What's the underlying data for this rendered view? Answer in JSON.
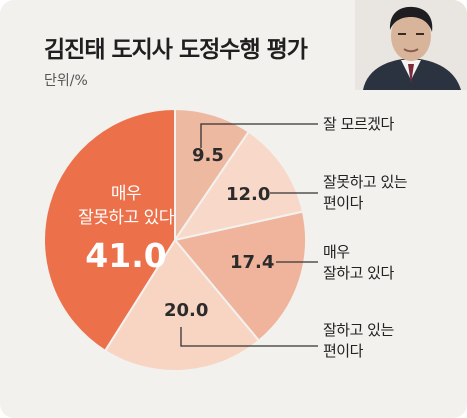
{
  "header": {
    "title": "김진태 도지사 도정수행 평가",
    "unit": "단위/%"
  },
  "chart_data": {
    "type": "pie",
    "start_angle_deg": 0,
    "direction": "clockwise",
    "categories": [
      "잘 모르겠다",
      "잘못하고 있는 편이다",
      "매우 잘하고 있다",
      "잘하고 있는 편이다",
      "매우 잘못하고 있다"
    ],
    "values": [
      9.5,
      12.0,
      17.4,
      20.0,
      41.0
    ],
    "value_labels": [
      "9.5",
      "12.0",
      "17.4",
      "20.0",
      "41.0"
    ],
    "legend_lines": [
      [
        "잘 모르겠다"
      ],
      [
        "잘못하고 있는",
        "편이다"
      ],
      [
        "매우",
        "잘하고 있다"
      ],
      [
        "잘하고 있는",
        "편이다"
      ]
    ],
    "highlight_label_lines": [
      "매우",
      "잘못하고 있다"
    ],
    "colors": [
      "#edb9a1",
      "#f8d8c9",
      "#efb49b",
      "#f8d5c3",
      "#ec7049"
    ],
    "title": "김진태 도지사 도정수행 평가"
  }
}
